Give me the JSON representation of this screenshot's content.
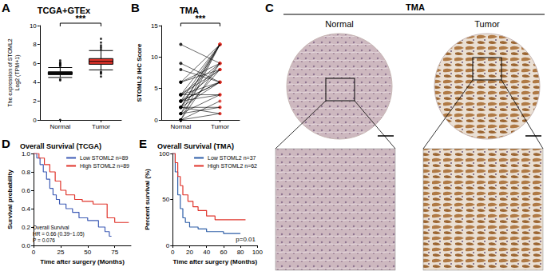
{
  "chart_data": [
    {
      "panel": "A",
      "type": "boxplot",
      "title": "TCGA+GTEx",
      "ylabel": "The expression of STOML2\nLog2 (TPM+1)",
      "categories": [
        "Normal",
        "Tumor"
      ],
      "values": [
        [
          4.5,
          4.8,
          4.95,
          5.1,
          5.55
        ],
        [
          5.3,
          5.9,
          6.2,
          6.5,
          7.35
        ]
      ],
      "outliers": [
        [
          5.7,
          5.8,
          5.9,
          6.0,
          6.1,
          6.3,
          0.0,
          4.2,
          4.3
        ],
        [
          7.5,
          7.7,
          7.9,
          8.2,
          8.6,
          4.9,
          5.0,
          5.1,
          4.6
        ]
      ],
      "colors": [
        "#111111",
        "#e3342b"
      ],
      "ylim": [
        0,
        10
      ],
      "yticks": [
        0,
        2,
        4,
        6,
        8,
        10
      ],
      "annotations": [
        "***"
      ],
      "grid": false
    },
    {
      "panel": "B",
      "type": "paired",
      "title": "TMA",
      "ylabel": "STOML2 IHC Score",
      "categories": [
        "Normal",
        "Tumor"
      ],
      "values": [
        [
          0,
          0,
          1,
          1,
          2,
          2,
          2,
          3,
          3,
          3,
          4,
          4,
          4,
          6,
          6,
          0,
          1,
          2,
          3,
          4,
          6,
          8,
          2,
          1,
          3,
          4,
          0,
          2,
          9,
          12
        ],
        [
          12,
          9,
          8,
          12,
          6,
          9,
          12,
          6,
          8,
          12,
          9,
          6,
          4,
          12,
          8,
          3,
          4,
          2,
          6,
          12,
          9,
          6,
          1,
          2,
          4,
          8,
          1,
          12,
          6,
          9
        ]
      ],
      "colors": [
        "#000000",
        "#e3342b"
      ],
      "ylim": [
        0,
        15
      ],
      "yticks": [
        0,
        5,
        10,
        15
      ],
      "annotations": [
        "***"
      ],
      "grid": false
    },
    {
      "panel": "D",
      "type": "step",
      "title": "Overall Survival (TCGA)",
      "xlabel": "Time after surgery (Months)",
      "ylabel": "Survival probability",
      "series": [
        {
          "name": "Low STOML2 n=89",
          "color": "#3d5bb5",
          "x": [
            0,
            3,
            6,
            9,
            12,
            15,
            18,
            21,
            24,
            30,
            36,
            42,
            50,
            60,
            66,
            70,
            72
          ],
          "values": [
            1,
            0.95,
            0.88,
            0.8,
            0.72,
            0.62,
            0.55,
            0.5,
            0.45,
            0.4,
            0.36,
            0.3,
            0.27,
            0.2,
            0.15,
            0.1,
            0.1
          ]
        },
        {
          "name": "High STOML2 n=89",
          "color": "#e0342b",
          "x": [
            0,
            5,
            10,
            15,
            20,
            25,
            30,
            38,
            45,
            55,
            65,
            68,
            75,
            88
          ],
          "values": [
            1,
            0.95,
            0.88,
            0.8,
            0.7,
            0.6,
            0.55,
            0.5,
            0.48,
            0.45,
            0.45,
            0.3,
            0.25,
            0.25
          ]
        }
      ],
      "xlim": [
        0,
        90
      ],
      "xticks": [
        0,
        25,
        50,
        75
      ],
      "ylim": [
        0,
        1
      ],
      "yticks": [
        {
          "value": 0,
          "label": "0.0"
        },
        0.2,
        0.4,
        0.6,
        0.8,
        {
          "value": 1,
          "label": "1.0"
        }
      ],
      "annotations": [
        "Overall Survival",
        "HR = 0.66 (0.39−1.05)",
        "P = 0.076"
      ],
      "legend": "top-right",
      "grid": false
    },
    {
      "panel": "E",
      "type": "step",
      "title": "Overall Survival (TMA)",
      "xlabel": "Time after surgery (Months)",
      "ylabel": "Percent survival (%)",
      "series": [
        {
          "name": "Low STOML2 n=37",
          "color": "#2f5fa8",
          "x": [
            0,
            3,
            6,
            9,
            12,
            15,
            20,
            30,
            40,
            60,
            80
          ],
          "values": [
            100,
            80,
            55,
            40,
            30,
            25,
            20,
            18,
            15,
            13,
            13
          ]
        },
        {
          "name": "High STOML2 n=62",
          "color": "#e0342b",
          "x": [
            0,
            3,
            6,
            9,
            12,
            18,
            24,
            30,
            40,
            50,
            86
          ],
          "values": [
            100,
            90,
            75,
            65,
            55,
            48,
            42,
            38,
            32,
            28,
            28
          ]
        }
      ],
      "xlim": [
        0,
        100
      ],
      "xticks": [
        0,
        20,
        40,
        60,
        80,
        100
      ],
      "ylim": [
        0,
        100
      ],
      "yticks": [
        0,
        50,
        100
      ],
      "annotations": [
        "p=0.01"
      ],
      "legend": "top-right",
      "grid": false
    }
  ],
  "image_panel": {
    "panel": "C",
    "title": "TMA",
    "labels": [
      "Normal",
      "Tumor"
    ]
  }
}
